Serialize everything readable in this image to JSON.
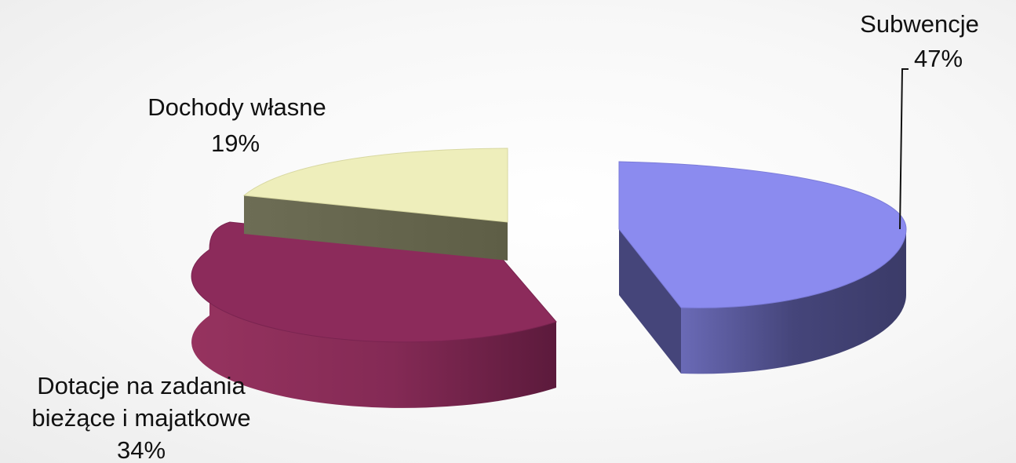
{
  "chart_data": {
    "type": "pie",
    "title": "",
    "legend": "none",
    "slices": [
      {
        "label": "Subwencje",
        "value": 47,
        "value_label": "47%",
        "top_color": "#8b8bef",
        "side_color": "#3b3b68",
        "side_light": "#5f5fa8"
      },
      {
        "label": "Dotacje na zadania bieżące i majatkowe",
        "label_lines": [
          "Dotacje na zadania",
          "bieżące i majatkowe"
        ],
        "value": 34,
        "value_label": "34%",
        "top_color": "#8c2b5b",
        "side_color": "#5e1a3d",
        "side_light": "#93325f"
      },
      {
        "label": "Dochody własne",
        "value": 19,
        "value_label": "19%",
        "top_color": "#eeeebb",
        "side_color": "#63634a",
        "side_light": "#6d6d55"
      }
    ]
  }
}
